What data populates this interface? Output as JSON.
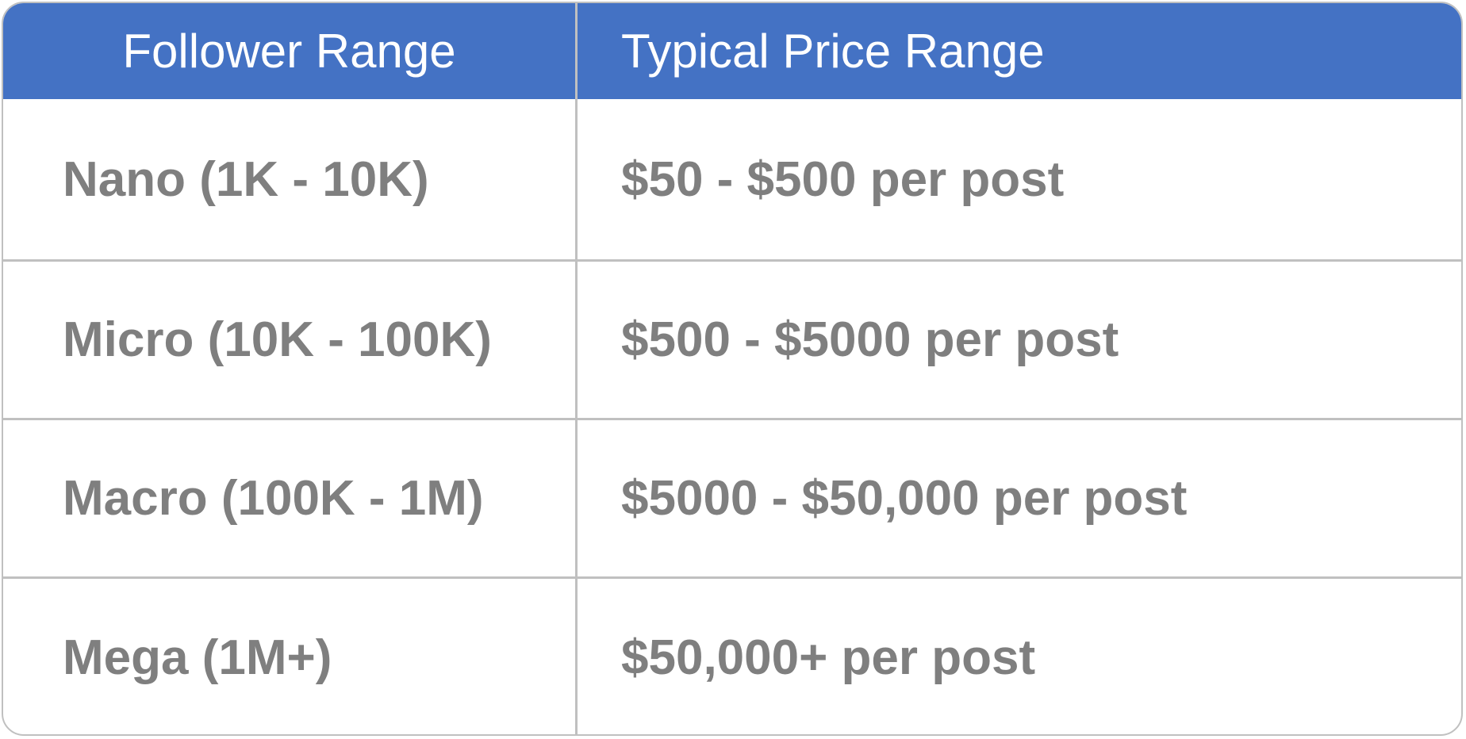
{
  "table": {
    "headers": [
      "Follower Range",
      "Typical Price Range"
    ],
    "rows": [
      {
        "follower_range": "Nano (1K - 10K)",
        "price_range": "$50 - $500 per post"
      },
      {
        "follower_range": "Micro (10K - 100K)",
        "price_range": "$500 - $5000 per post"
      },
      {
        "follower_range": "Macro (100K - 1M)",
        "price_range": "$5000 - $50,000 per post"
      },
      {
        "follower_range": "Mega (1M+)",
        "price_range": "$50,000+ per post"
      }
    ]
  },
  "colors": {
    "header_background": "#4472c4",
    "header_text": "#ffffff",
    "body_text": "#7f7f7f",
    "grid_lines": "#c0c0c0"
  }
}
